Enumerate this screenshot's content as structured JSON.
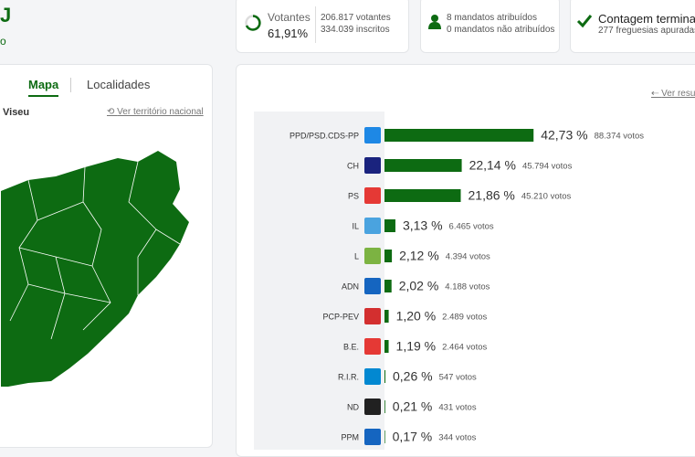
{
  "header": {
    "title": "J",
    "subtitle": "o"
  },
  "stats": {
    "voters_label": "Votantes",
    "voters_percent": "61,91%",
    "voters": "206.817 votantes",
    "registered": "334.039 inscritos",
    "seats_assigned": "8 mandatos atribuídos",
    "seats_unassigned": "0 mandatos não atribuídos",
    "count_status": "Contagem termina",
    "parishes": "277 freguesias apuradas"
  },
  "map_panel": {
    "tabs": [
      "Mapa",
      "Localidades"
    ],
    "region": "Viseu",
    "back_link": "Ver território nacional"
  },
  "results": {
    "link": "Ver resul",
    "rows": [
      {
        "party": "PPD/PSD.CDS-PP",
        "percent": 42.73,
        "percent_label": "42,73 %",
        "votes": "88.374 votos",
        "logo": "#1e88e5"
      },
      {
        "party": "CH",
        "percent": 22.14,
        "percent_label": "22,14 %",
        "votes": "45.794 votos",
        "logo": "#1a237e"
      },
      {
        "party": "PS",
        "percent": 21.86,
        "percent_label": "21,86 %",
        "votes": "45.210 votos",
        "logo": "#e53935"
      },
      {
        "party": "IL",
        "percent": 3.13,
        "percent_label": "3,13 %",
        "votes": "6.465 votos",
        "logo": "#4aa3df"
      },
      {
        "party": "L",
        "percent": 2.12,
        "percent_label": "2,12 %",
        "votes": "4.394 votos",
        "logo": "#7cb342"
      },
      {
        "party": "ADN",
        "percent": 2.02,
        "percent_label": "2,02 %",
        "votes": "4.188 votos",
        "logo": "#1565c0"
      },
      {
        "party": "PCP-PEV",
        "percent": 1.2,
        "percent_label": "1,20 %",
        "votes": "2.489 votos",
        "logo": "#d32f2f"
      },
      {
        "party": "B.E.",
        "percent": 1.19,
        "percent_label": "1,19 %",
        "votes": "2.464 votos",
        "logo": "#e53935"
      },
      {
        "party": "R.I.R.",
        "percent": 0.26,
        "percent_label": "0,26 %",
        "votes": "547 votos",
        "logo": "#0288d1"
      },
      {
        "party": "ND",
        "percent": 0.21,
        "percent_label": "0,21 %",
        "votes": "431 votos",
        "logo": "#212121"
      },
      {
        "party": "PPM",
        "percent": 0.17,
        "percent_label": "0,17 %",
        "votes": "344 votos",
        "logo": "#1565c0"
      }
    ],
    "bar_color": "#0d6b12"
  }
}
